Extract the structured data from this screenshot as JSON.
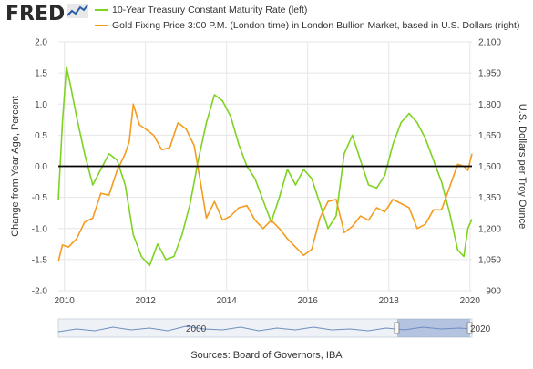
{
  "brand": {
    "logo_text": "FRED",
    "logo_icon": "sparkline-icon"
  },
  "legend": [
    {
      "label": "10-Year Treasury Constant Maturity Rate (left)",
      "color": "#7ed321"
    },
    {
      "label": "Gold Fixing Price 3:00 P.M. (London time) in London Bullion Market, based in U.S. Dollars (right)",
      "color": "#f39c1f"
    }
  ],
  "source": "Sources: Board of Governors, IBA",
  "navigator": {
    "start_label": "2000",
    "end_label": "2020"
  },
  "chart_data": {
    "type": "line",
    "y_left_label": "Change from Year Ago, Percent",
    "y_right_label": "U.S. Dollars per Troy Ounce",
    "x_ticks": [
      "2010",
      "2012",
      "2014",
      "2016",
      "2018",
      "2020"
    ],
    "x_range": [
      2009.85,
      2020.05
    ],
    "y_left_ticks": [
      "2.0",
      "1.5",
      "1.0",
      "0.5",
      "0.0",
      "-0.5",
      "-1.0",
      "-1.5",
      "-2.0"
    ],
    "y_left_range": [
      -2.0,
      2.0
    ],
    "y_right_ticks": [
      "2,100",
      "1,950",
      "1,800",
      "1,650",
      "1,500",
      "1,350",
      "1,200",
      "1,050",
      "900"
    ],
    "y_right_range": [
      900,
      2100
    ],
    "zero_line": 0,
    "colors": {
      "treasury": "#7ed321",
      "gold": "#f39c1f",
      "zero": "#000000"
    },
    "series": [
      {
        "name": "10-Year Treasury Constant Maturity Rate (left)",
        "axis": "left",
        "x": [
          2009.85,
          2009.95,
          2010.05,
          2010.15,
          2010.3,
          2010.5,
          2010.7,
          2010.9,
          2011.1,
          2011.3,
          2011.5,
          2011.7,
          2011.9,
          2012.1,
          2012.3,
          2012.5,
          2012.7,
          2012.9,
          2013.1,
          2013.3,
          2013.5,
          2013.7,
          2013.9,
          2014.1,
          2014.3,
          2014.5,
          2014.7,
          2014.9,
          2015.1,
          2015.3,
          2015.5,
          2015.7,
          2015.9,
          2016.1,
          2016.3,
          2016.5,
          2016.7,
          2016.9,
          2017.1,
          2017.3,
          2017.5,
          2017.7,
          2017.9,
          2018.1,
          2018.3,
          2018.5,
          2018.7,
          2018.9,
          2019.1,
          2019.3,
          2019.5,
          2019.7,
          2019.85,
          2019.95,
          2020.05
        ],
        "y": [
          -0.55,
          0.7,
          1.6,
          1.3,
          0.8,
          0.2,
          -0.3,
          -0.05,
          0.2,
          0.1,
          -0.3,
          -1.1,
          -1.45,
          -1.6,
          -1.25,
          -1.5,
          -1.45,
          -1.1,
          -0.6,
          0.1,
          0.7,
          1.15,
          1.05,
          0.8,
          0.35,
          0.0,
          -0.2,
          -0.55,
          -0.9,
          -0.5,
          -0.05,
          -0.3,
          -0.05,
          -0.2,
          -0.6,
          -1.0,
          -0.8,
          0.2,
          0.5,
          0.1,
          -0.3,
          -0.35,
          -0.15,
          0.35,
          0.7,
          0.85,
          0.7,
          0.45,
          0.1,
          -0.25,
          -0.75,
          -1.35,
          -1.45,
          -1.0,
          -0.85
        ]
      },
      {
        "name": "Gold Fixing Price 3:00 P.M. (London time) in London Bullion Market, based in U.S. Dollars (right)",
        "axis": "right",
        "x": [
          2009.85,
          2009.95,
          2010.1,
          2010.3,
          2010.5,
          2010.7,
          2010.9,
          2011.1,
          2011.3,
          2011.5,
          2011.6,
          2011.7,
          2011.85,
          2012.0,
          2012.2,
          2012.4,
          2012.6,
          2012.8,
          2013.0,
          2013.2,
          2013.35,
          2013.5,
          2013.7,
          2013.9,
          2014.1,
          2014.3,
          2014.5,
          2014.7,
          2014.9,
          2015.1,
          2015.3,
          2015.5,
          2015.7,
          2015.9,
          2016.1,
          2016.3,
          2016.5,
          2016.7,
          2016.9,
          2017.1,
          2017.3,
          2017.5,
          2017.7,
          2017.9,
          2018.1,
          2018.3,
          2018.5,
          2018.7,
          2018.9,
          2019.1,
          2019.3,
          2019.5,
          2019.7,
          2019.85,
          2019.95,
          2020.05
        ],
        "y": [
          1040,
          1120,
          1110,
          1150,
          1230,
          1250,
          1370,
          1360,
          1480,
          1560,
          1620,
          1800,
          1700,
          1680,
          1650,
          1580,
          1590,
          1710,
          1680,
          1600,
          1430,
          1250,
          1330,
          1240,
          1260,
          1300,
          1310,
          1240,
          1200,
          1240,
          1200,
          1150,
          1110,
          1070,
          1100,
          1250,
          1330,
          1340,
          1180,
          1210,
          1260,
          1240,
          1300,
          1280,
          1340,
          1320,
          1300,
          1200,
          1220,
          1290,
          1290,
          1400,
          1510,
          1500,
          1480,
          1560
        ]
      }
    ]
  }
}
